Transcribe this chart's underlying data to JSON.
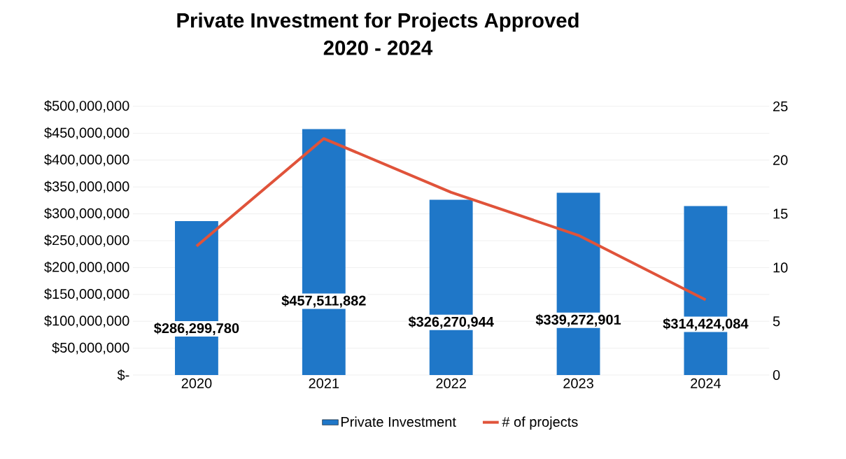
{
  "chart_data": {
    "type": "bar",
    "title": "Private Investment for Projects Approved",
    "subtitle": "2020 - 2024",
    "categories": [
      "2020",
      "2021",
      "2022",
      "2023",
      "2024"
    ],
    "series": [
      {
        "name": "Private Investment",
        "color": "#1f77c8",
        "values": [
          286299780,
          457511882,
          326270944,
          339272901,
          314424084
        ],
        "value_labels": [
          "$286,299,780",
          "$457,511,882",
          "$326,270,944",
          "$339,272,901",
          "$314,424,084"
        ]
      },
      {
        "name": "# of projects",
        "type": "line",
        "axis": "y2",
        "color": "#e0533a",
        "values": [
          12,
          22,
          17,
          13,
          7
        ]
      }
    ],
    "ylim": [
      0,
      500000000
    ],
    "yticks": [
      {
        "value": 0,
        "label": "$-"
      },
      {
        "value": 50000000,
        "label": "$50,000,000"
      },
      {
        "value": 100000000,
        "label": "$100,000,000"
      },
      {
        "value": 150000000,
        "label": "$150,000,000"
      },
      {
        "value": 200000000,
        "label": "$200,000,000"
      },
      {
        "value": 250000000,
        "label": "$250,000,000"
      },
      {
        "value": 300000000,
        "label": "$300,000,000"
      },
      {
        "value": 350000000,
        "label": "$350,000,000"
      },
      {
        "value": 400000000,
        "label": "$400,000,000"
      },
      {
        "value": 450000000,
        "label": "$450,000,000"
      },
      {
        "value": 500000000,
        "label": "$500,000,000"
      }
    ],
    "y2lim": [
      0,
      25
    ],
    "y2ticks": [
      0,
      5,
      10,
      15,
      20,
      25
    ],
    "grid": "y",
    "legend": "bottom"
  }
}
